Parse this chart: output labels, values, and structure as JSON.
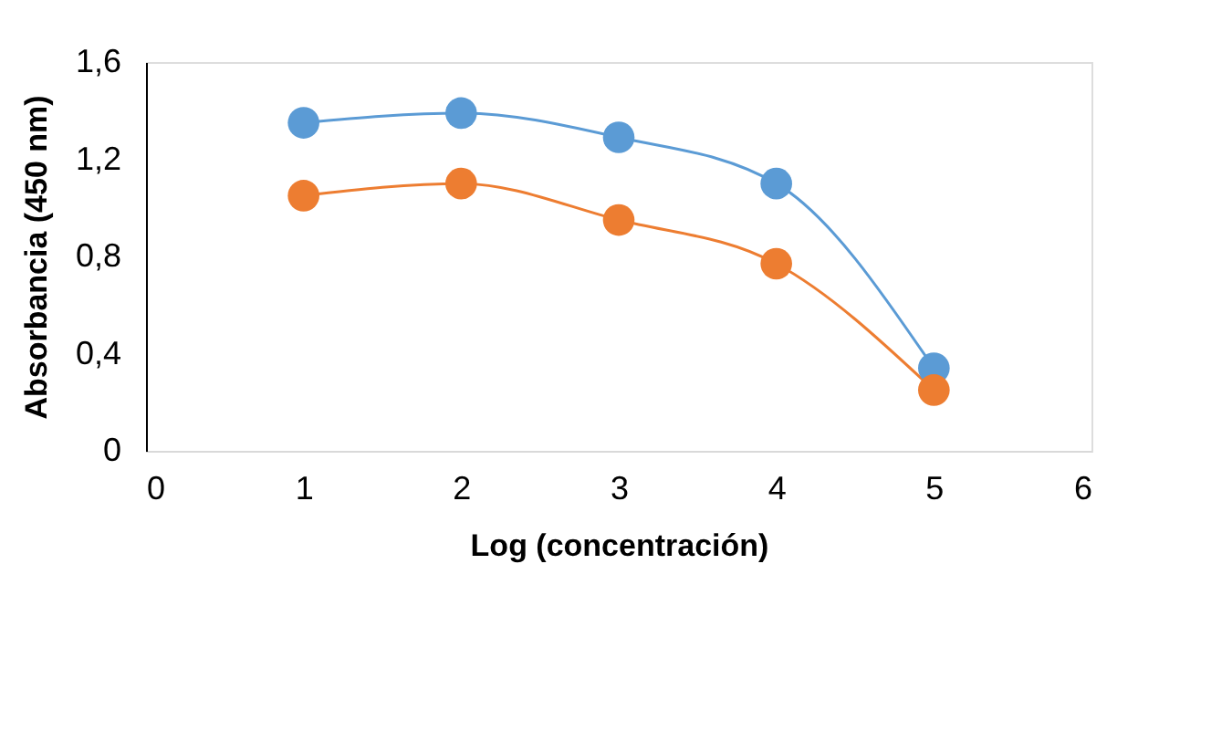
{
  "chart_data": {
    "type": "line",
    "xlabel": "Log (concentración)",
    "ylabel": "Absorbancia (450 nm)",
    "x": [
      1,
      2,
      3,
      4,
      5
    ],
    "series": [
      {
        "color": "#5b9bd5",
        "values": [
          1.35,
          1.39,
          1.29,
          1.1,
          0.34
        ]
      },
      {
        "color": "#ed7d31",
        "values": [
          1.05,
          1.1,
          0.95,
          0.77,
          0.25
        ]
      }
    ],
    "xlim": [
      0,
      6
    ],
    "xticks": [
      0,
      1,
      2,
      3,
      4,
      5,
      6
    ],
    "ylim": [
      0,
      1.6
    ],
    "yticks": [
      0,
      {
        "value": 0.4,
        "label": "0,4"
      },
      {
        "value": 0.8,
        "label": "0,8"
      },
      {
        "value": 1.2,
        "label": "1,2"
      },
      {
        "value": 1.6,
        "label": "1,6"
      }
    ],
    "grid": false,
    "legend": false,
    "marker": "circle",
    "line_style": "solid"
  }
}
